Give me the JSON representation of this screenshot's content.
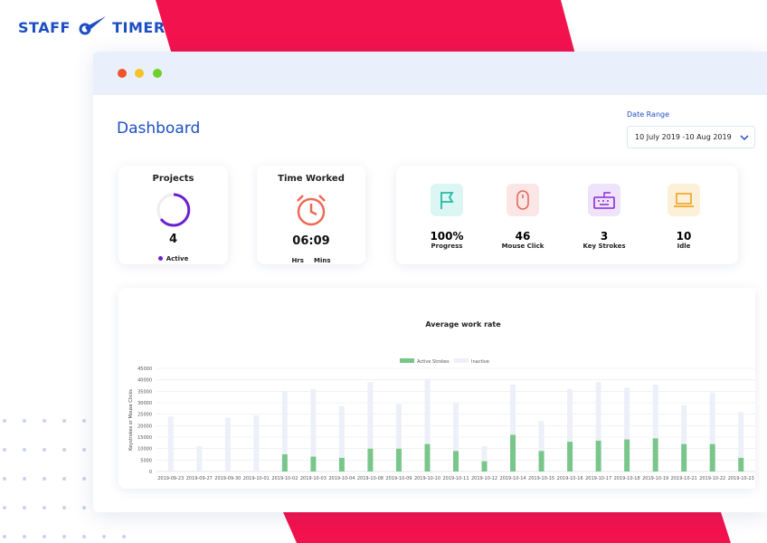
{
  "logo": {
    "left": "STAFF",
    "right": "TIMER"
  },
  "header": {
    "title": "Dashboard",
    "date_range_label": "Date Range",
    "date_range": "10 July 2019 -10 Aug 2019"
  },
  "cards": {
    "projects": {
      "title": "Projects",
      "value": "4",
      "status": "Active"
    },
    "time_worked": {
      "title": "Time Worked",
      "value": "06:09",
      "hours_label": "Hrs",
      "minutes_label": "Mins"
    }
  },
  "stats": [
    {
      "value": "100%",
      "label": "Progress"
    },
    {
      "value": "46",
      "label": "Mouse Click"
    },
    {
      "value": "3",
      "label": "Key Strokes"
    },
    {
      "value": "10",
      "label": "Idle"
    }
  ],
  "chart_data": {
    "type": "bar",
    "stacked": true,
    "title": "Average work rate",
    "y_label": "Keystrokes or Mouse Clicks",
    "categories": [
      "2019-09-23",
      "2019-09-27",
      "2019-09-30",
      "2019-10-01",
      "2019-10-02",
      "2019-10-03",
      "2019-10-04",
      "2019-10-08",
      "2019-10-09",
      "2019-10-10",
      "2019-10-11",
      "2019-10-12",
      "2019-10-14",
      "2019-10-15",
      "2019-10-16",
      "2019-10-17",
      "2019-10-18",
      "2019-10-19",
      "2019-10-21",
      "2019-10-22",
      "2019-10-23"
    ],
    "series": [
      {
        "name": "Active Strokes",
        "color": "#79c68a",
        "values": [
          0,
          0,
          0,
          0,
          7500,
          6500,
          6000,
          10000,
          10000,
          12000,
          9000,
          4500,
          16000,
          9000,
          13000,
          13500,
          14000,
          14500,
          12000,
          12000,
          6000
        ]
      },
      {
        "name": "Inactive",
        "color": "#edf0f8",
        "values": [
          24000,
          11000,
          23500,
          24500,
          27500,
          29500,
          22500,
          29000,
          19500,
          28500,
          21000,
          6500,
          22000,
          13000,
          23000,
          25500,
          22500,
          23500,
          17000,
          22500,
          20000
        ]
      }
    ],
    "ylim": [
      0,
      45000
    ],
    "yticks": [
      0,
      5000,
      10000,
      15000,
      20000,
      25000,
      30000,
      35000,
      40000,
      45000
    ],
    "grid": true,
    "legend": "top"
  }
}
